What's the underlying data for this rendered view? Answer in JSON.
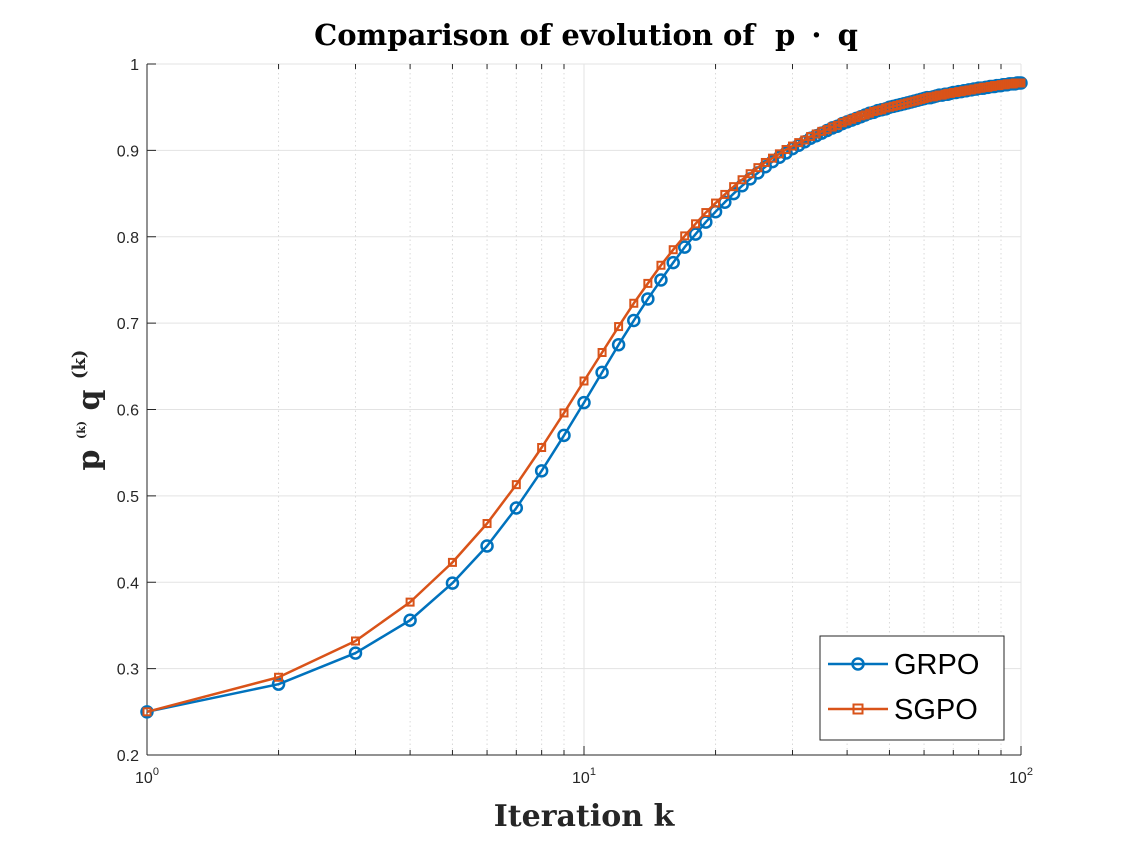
{
  "chart_data": {
    "type": "line",
    "title_parts": [
      "Comparison of evolution of",
      "p",
      "·",
      "q"
    ],
    "xlabel": "Iteration k",
    "ylabel_parts": [
      "p",
      "(k)",
      "q",
      "(k)"
    ],
    "x_scale": "log",
    "xlim": [
      1,
      100
    ],
    "ylim": [
      0.2,
      1.0
    ],
    "grid": true,
    "legend_position": "bottom-right",
    "x_ticks": [
      {
        "base": "10",
        "exp": "0"
      },
      {
        "base": "10",
        "exp": "1"
      },
      {
        "base": "10",
        "exp": "2"
      }
    ],
    "y_ticks": [
      "0.2",
      "0.3",
      "0.4",
      "0.5",
      "0.6",
      "0.7",
      "0.8",
      "0.9",
      "1"
    ],
    "series": [
      {
        "name": "GRPO",
        "color": "#0072BD",
        "marker": "circle",
        "values": [
          0.25,
          0.282,
          0.318,
          0.356,
          0.399,
          0.442,
          0.486,
          0.529,
          0.57,
          0.608,
          0.643,
          0.675,
          0.703,
          0.728,
          0.75,
          0.77,
          0.788,
          0.803,
          0.817,
          0.829,
          0.84,
          0.85,
          0.859,
          0.867,
          0.874,
          0.881,
          0.887,
          0.892,
          0.897,
          0.902,
          0.906,
          0.91,
          0.914,
          0.917,
          0.92,
          0.923,
          0.926,
          0.928,
          0.931,
          0.933,
          0.935,
          0.937,
          0.939,
          0.941,
          0.943,
          0.944,
          0.946,
          0.947,
          0.948,
          0.95,
          0.951,
          0.952,
          0.953,
          0.954,
          0.955,
          0.956,
          0.957,
          0.958,
          0.959,
          0.96,
          0.961,
          0.961,
          0.962,
          0.963,
          0.964,
          0.964,
          0.965,
          0.965,
          0.966,
          0.967,
          0.967,
          0.968,
          0.968,
          0.969,
          0.969,
          0.97,
          0.97,
          0.971,
          0.971,
          0.972,
          0.972,
          0.972,
          0.973,
          0.973,
          0.974,
          0.974,
          0.974,
          0.975,
          0.975,
          0.975,
          0.976,
          0.976,
          0.976,
          0.977,
          0.977,
          0.977,
          0.977,
          0.978,
          0.978,
          0.978
        ]
      },
      {
        "name": "SGPO",
        "color": "#D95319",
        "marker": "square",
        "values": [
          0.25,
          0.29,
          0.332,
          0.377,
          0.423,
          0.468,
          0.513,
          0.556,
          0.596,
          0.633,
          0.666,
          0.696,
          0.723,
          0.746,
          0.767,
          0.785,
          0.801,
          0.815,
          0.828,
          0.839,
          0.849,
          0.858,
          0.866,
          0.873,
          0.88,
          0.886,
          0.891,
          0.896,
          0.901,
          0.905,
          0.909,
          0.912,
          0.916,
          0.919,
          0.922,
          0.924,
          0.927,
          0.929,
          0.932,
          0.934,
          0.936,
          0.938,
          0.94,
          0.941,
          0.943,
          0.945,
          0.946,
          0.947,
          0.949,
          0.95,
          0.951,
          0.952,
          0.953,
          0.954,
          0.955,
          0.956,
          0.957,
          0.958,
          0.959,
          0.96,
          0.961,
          0.962,
          0.962,
          0.963,
          0.964,
          0.964,
          0.965,
          0.966,
          0.966,
          0.967,
          0.967,
          0.968,
          0.968,
          0.969,
          0.969,
          0.97,
          0.97,
          0.971,
          0.971,
          0.972,
          0.972,
          0.973,
          0.973,
          0.973,
          0.974,
          0.974,
          0.975,
          0.975,
          0.975,
          0.976,
          0.976,
          0.976,
          0.977,
          0.977,
          0.977,
          0.977,
          0.978,
          0.978,
          0.978,
          0.978
        ]
      }
    ]
  }
}
